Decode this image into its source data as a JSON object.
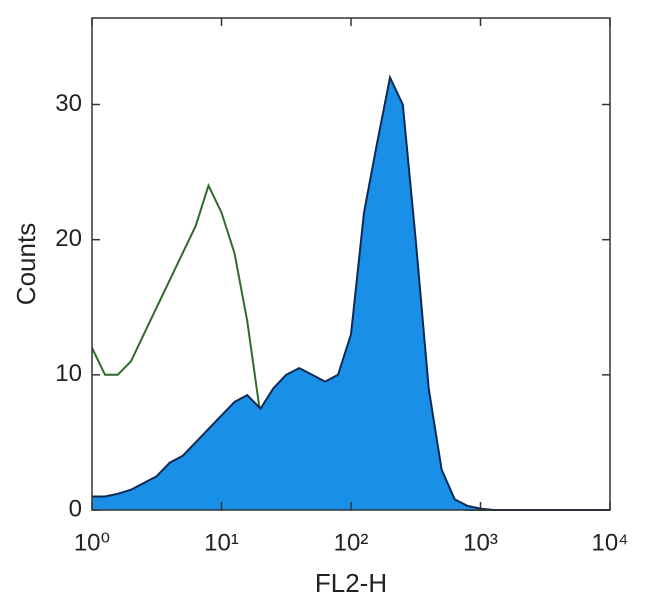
{
  "chart_data": {
    "type": "histogram-overlay",
    "x_label": "FL2-H",
    "y_label": "Counts",
    "x_scale": "log",
    "xlim": [
      1,
      10000
    ],
    "xticks": [
      {
        "value": 1,
        "label": "10⁰"
      },
      {
        "value": 10,
        "label": "10¹"
      },
      {
        "value": 100,
        "label": "10²"
      },
      {
        "value": 1000,
        "label": "10³"
      },
      {
        "value": 10000,
        "label": "10⁴"
      }
    ],
    "ylim": [
      0,
      36.4
    ],
    "yticks": [
      0,
      10,
      20,
      30
    ],
    "x": [
      1,
      1.26,
      1.58,
      2,
      2.51,
      3.16,
      3.98,
      5.01,
      6.31,
      7.94,
      10,
      12.6,
      15.8,
      20,
      25.1,
      31.6,
      39.8,
      50.1,
      63.1,
      79.4,
      100,
      126,
      158,
      200,
      251,
      316,
      398,
      501,
      631,
      794,
      1000,
      1260,
      1580,
      2000,
      2510,
      3160,
      3980,
      5010,
      6310,
      7940,
      10000
    ],
    "series": [
      {
        "color": "#2f6b2a",
        "fill": false,
        "values": [
          12,
          10,
          10,
          11,
          13,
          15,
          17,
          19,
          21,
          24,
          22,
          19,
          14,
          7,
          3,
          1.5,
          0.5,
          0.3,
          0.2,
          0.2,
          0.2,
          0.2,
          0.1,
          0.1,
          0.1,
          0.1,
          0.1,
          0.1,
          0.1,
          0,
          0,
          0,
          0,
          0,
          0,
          0,
          0,
          0,
          0,
          0,
          0
        ]
      },
      {
        "color": "#1a8fe8",
        "fill": true,
        "values": [
          1,
          1,
          1.2,
          1.5,
          2,
          2.5,
          3.5,
          4,
          5,
          6,
          7,
          8,
          8.5,
          7.5,
          9,
          10,
          10.5,
          10,
          9.5,
          10,
          13,
          22,
          27,
          32,
          30,
          20,
          9,
          3,
          0.8,
          0.3,
          0.1,
          0,
          0,
          0,
          0,
          0,
          0,
          0,
          0,
          0,
          0
        ]
      }
    ]
  }
}
